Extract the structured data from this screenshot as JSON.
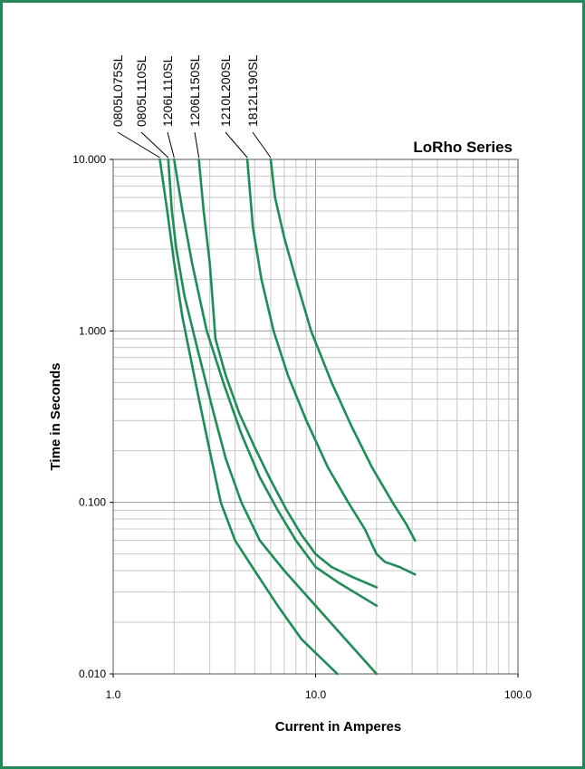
{
  "chart_data": {
    "type": "line",
    "title": "LoRho Series",
    "xlabel": "Current in Amperes",
    "ylabel": "Time in Seconds",
    "x_scale": "log",
    "y_scale": "log",
    "xlim": [
      1,
      100
    ],
    "ylim": [
      0.01,
      10
    ],
    "x_ticks": [
      "1.0",
      "10.0",
      "100.0"
    ],
    "y_ticks": [
      "10.000",
      "1.000",
      "0.100",
      "0.010"
    ],
    "grid": true,
    "legend": "curve labels above plot, rotated vertical",
    "colors": {
      "series": "#1a8f55",
      "frame": "#1f8a57",
      "grid": "#c8c8c8"
    },
    "series": [
      {
        "name": "0805L075SL",
        "x": [
          1.7,
          1.85,
          2.0,
          2.2,
          2.6,
          3.0,
          3.4,
          4.0,
          5.0,
          6.5,
          8.5,
          12.8
        ],
        "y": [
          10,
          5,
          2.5,
          1.2,
          0.45,
          0.2,
          0.1,
          0.06,
          0.04,
          0.025,
          0.016,
          0.01
        ]
      },
      {
        "name": "0805L110SL",
        "x": [
          1.87,
          1.95,
          2.05,
          2.25,
          2.6,
          3.1,
          3.6,
          4.3,
          5.3,
          7.0,
          10.0,
          14.0,
          20.0
        ],
        "y": [
          10,
          5,
          3,
          1.6,
          0.8,
          0.35,
          0.18,
          0.1,
          0.06,
          0.04,
          0.025,
          0.016,
          0.01
        ]
      },
      {
        "name": "1206L110SL",
        "x": [
          2.0,
          2.2,
          2.45,
          2.9,
          3.5,
          4.3,
          5.3,
          6.5,
          8.0,
          10.0,
          13.0,
          20.0
        ],
        "y": [
          10,
          5,
          2.5,
          1.0,
          0.5,
          0.25,
          0.14,
          0.09,
          0.06,
          0.042,
          0.034,
          0.025
        ]
      },
      {
        "name": "1206L150SL",
        "x": [
          2.65,
          2.8,
          3.0,
          3.1,
          3.2,
          3.6,
          4.2,
          5.0,
          6.0,
          7.2,
          8.5,
          10.0,
          12.0,
          15.0,
          20.0
        ],
        "y": [
          10,
          5,
          2.5,
          1.5,
          0.9,
          0.55,
          0.33,
          0.21,
          0.135,
          0.09,
          0.065,
          0.05,
          0.042,
          0.037,
          0.032
        ]
      },
      {
        "name": "1210L200SL",
        "x": [
          4.6,
          4.9,
          5.4,
          6.2,
          7.3,
          9.0,
          11.5,
          14.5,
          17.5,
          20.0,
          22.0,
          26.0,
          31.0
        ],
        "y": [
          10,
          4,
          2,
          1.0,
          0.55,
          0.3,
          0.16,
          0.1,
          0.07,
          0.05,
          0.045,
          0.042,
          0.038
        ]
      },
      {
        "name": "1812L190SL",
        "x": [
          6.0,
          6.3,
          7.0,
          8.0,
          9.5,
          12.0,
          15.0,
          19.0,
          24.0,
          28.0,
          31.0
        ],
        "y": [
          10,
          6,
          3.5,
          2.0,
          1.0,
          0.5,
          0.28,
          0.16,
          0.1,
          0.075,
          0.06
        ]
      }
    ]
  }
}
